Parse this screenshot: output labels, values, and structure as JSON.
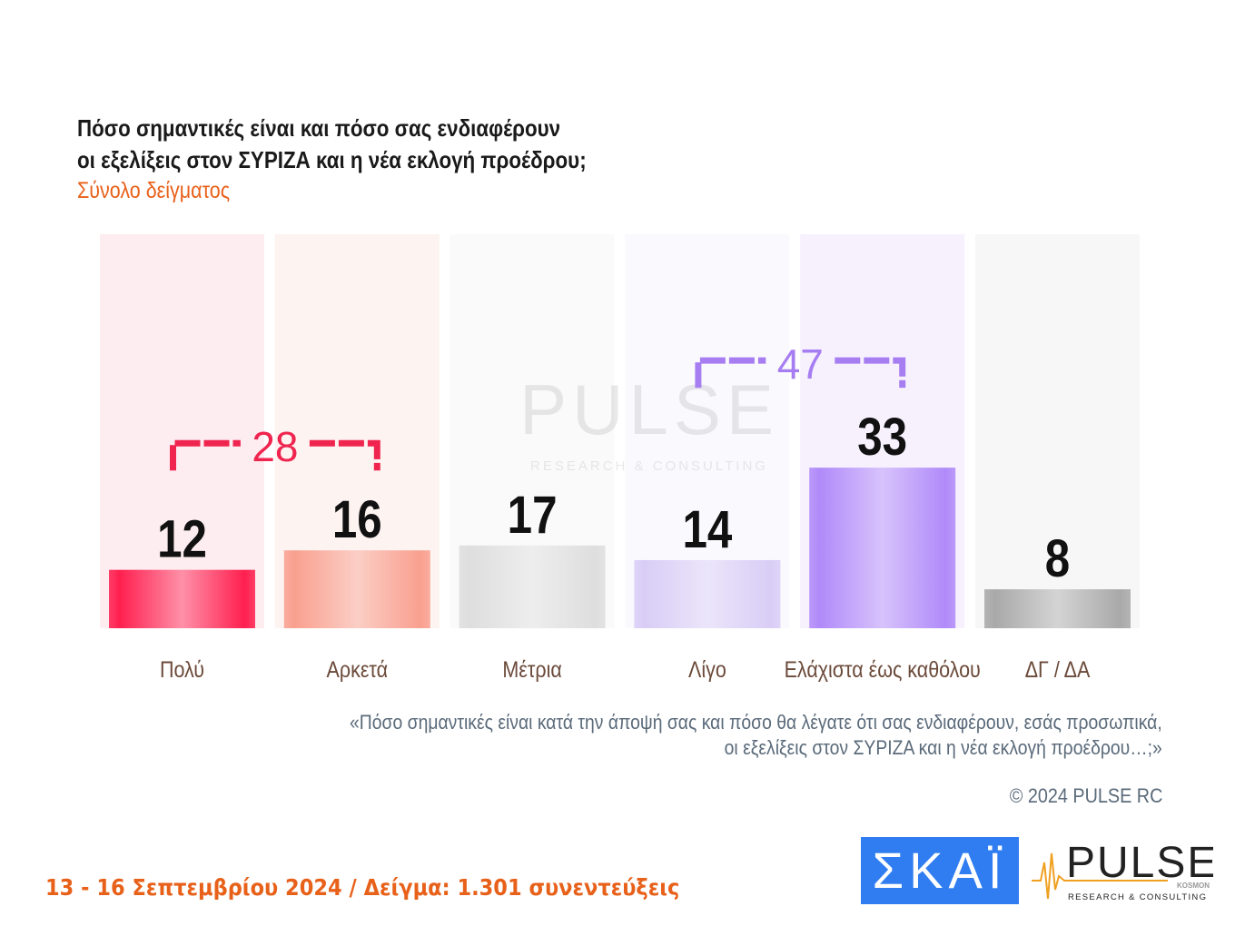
{
  "header": {
    "title_line1": "Πόσο σημαντικές είναι και πόσο σας ενδιαφέρουν",
    "title_line2": "οι εξελίξεις στον ΣΥΡΙΖΑ και η νέα εκλογή προέδρου;",
    "subtitle": "Σύνολο δείγματος"
  },
  "chart_data": {
    "type": "bar",
    "title": "Πόσο σημαντικές είναι και πόσο σας ενδιαφέρουν οι εξελίξεις στον ΣΥΡΙΖΑ και η νέα εκλογή προέδρου;",
    "categories": [
      "Πολύ",
      "Αρκετά",
      "Μέτρια",
      "Λίγο",
      "Ελάχιστα έως καθόλου",
      "ΔΓ / ΔΑ"
    ],
    "values": [
      12,
      16,
      17,
      14,
      33,
      8
    ],
    "colors": [
      "#ff1f4f",
      "#f9a08f",
      "#dedede",
      "#d9cdf6",
      "#b08af9",
      "#a9a9a9"
    ],
    "bg_colors": [
      "#fdecf0",
      "#fdf3f1",
      "#fafafa",
      "#faf9fd",
      "#f7f1fe",
      "#f7f7f7"
    ],
    "groups": [
      {
        "label": "28",
        "from": 0,
        "to": 1,
        "color": "#f0254f"
      },
      {
        "label": "47",
        "from": 3,
        "to": 4,
        "color": "#a77ef2"
      }
    ],
    "ylim": [
      0,
      80
    ]
  },
  "note": {
    "line1": "«Πόσο σημαντικές είναι κατά την άποψή σας και πόσο θα λέγατε ότι σας ενδιαφέρουν, εσάς προσωπικά,",
    "line2": "οι εξελίξεις στον ΣΥΡΙΖΑ και η νέα εκλογή προέδρου…;»"
  },
  "copyright": "© 2024 PULSE RC",
  "footer": "13 - 16 Σεπτεμβρίου 2024  /  Δείγμα:  1.301 συνεντεύξεις",
  "logos": {
    "skai": "ΣΚΑΪ",
    "pulse": "PULSE",
    "pulse_sub": "RESEARCH & CONSULTING",
    "kosmon": "KOSMON"
  }
}
